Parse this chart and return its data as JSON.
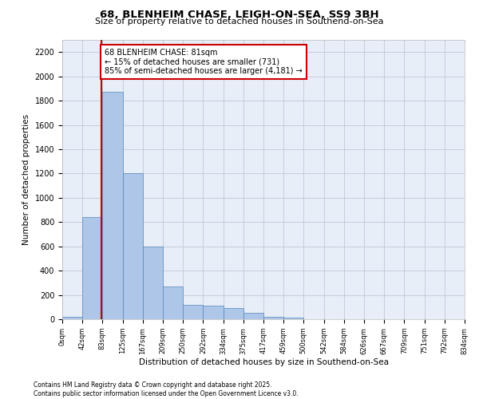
{
  "title1": "68, BLENHEIM CHASE, LEIGH-ON-SEA, SS9 3BH",
  "title2": "Size of property relative to detached houses in Southend-on-Sea",
  "xlabel": "Distribution of detached houses by size in Southend-on-Sea",
  "ylabel": "Number of detached properties",
  "footer1": "Contains HM Land Registry data © Crown copyright and database right 2025.",
  "footer2": "Contains public sector information licensed under the Open Government Licence v3.0.",
  "annotation_title": "68 BLENHEIM CHASE: 81sqm",
  "annotation_line1": "← 15% of detached houses are smaller (731)",
  "annotation_line2": "85% of semi-detached houses are larger (4,181) →",
  "property_size": 81,
  "bar_color": "#aec6e8",
  "bar_edge_color": "#5588bb",
  "redline_color": "#cc0000",
  "annotation_box_color": "#cc0000",
  "bg_color": "#e8eef8",
  "grid_color": "#c0c8d8",
  "categories": [
    "0sqm",
    "42sqm",
    "83sqm",
    "125sqm",
    "167sqm",
    "209sqm",
    "250sqm",
    "292sqm",
    "334sqm",
    "375sqm",
    "417sqm",
    "459sqm",
    "500sqm",
    "542sqm",
    "584sqm",
    "626sqm",
    "667sqm",
    "709sqm",
    "751sqm",
    "792sqm",
    "834sqm"
  ],
  "bin_edges": [
    0,
    42,
    83,
    125,
    167,
    209,
    250,
    292,
    334,
    375,
    417,
    459,
    500,
    542,
    584,
    626,
    667,
    709,
    751,
    792,
    834
  ],
  "values": [
    20,
    840,
    1870,
    1200,
    600,
    270,
    120,
    110,
    90,
    50,
    20,
    10,
    0,
    0,
    0,
    0,
    0,
    0,
    0,
    0
  ],
  "ylim": [
    0,
    2300
  ],
  "yticks": [
    0,
    200,
    400,
    600,
    800,
    1000,
    1200,
    1400,
    1600,
    1800,
    2000,
    2200
  ]
}
